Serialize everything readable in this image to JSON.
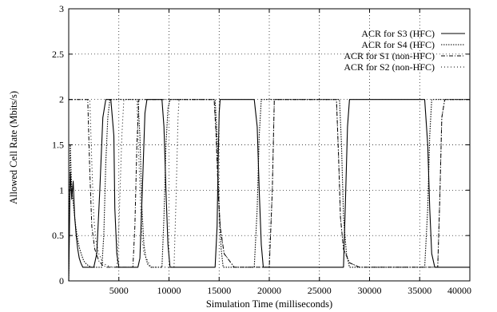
{
  "chart_data": {
    "type": "line",
    "title": "",
    "xlabel": "Simulation Time (milliseconds)",
    "ylabel": "Allowed Cell Rate (Mbits/s)",
    "xlim": [
      0,
      40000
    ],
    "ylim": [
      0,
      3
    ],
    "x_ticks": [
      5000,
      10000,
      15000,
      20000,
      25000,
      30000,
      35000,
      40000
    ],
    "y_ticks": [
      0,
      0.5,
      1,
      1.5,
      2,
      2.5,
      3
    ],
    "x_tick_labels": [
      "5000",
      "10000",
      "15000",
      "20000",
      "25000",
      "30000",
      "35000",
      "40000"
    ],
    "y_tick_labels": [
      "0",
      "0.5",
      "1",
      "1.5",
      "2",
      "2.5",
      "3"
    ],
    "grid": true,
    "legend_position": "top-right",
    "series": [
      {
        "name": "ACR for S3 (HFC)",
        "style": "solid",
        "x": [
          0,
          150,
          300,
          450,
          600,
          750,
          900,
          1050,
          1200,
          1400,
          1700,
          2000,
          2500,
          2800,
          3100,
          3400,
          3700,
          3800,
          4200,
          4500,
          4600,
          4800,
          5000,
          6000,
          6900,
          7100,
          7400,
          7600,
          7800,
          8000,
          8200,
          8600,
          9300,
          9500,
          9700,
          9900,
          10100,
          11000,
          12000,
          13000,
          14000,
          14600,
          14800,
          14900,
          15000,
          15100,
          15200,
          18500,
          18800,
          19000,
          19200,
          19400,
          19600,
          20000,
          23000,
          26000,
          27000,
          27400,
          27600,
          27800,
          28000,
          28200,
          30000,
          33000,
          35500,
          35800,
          36000,
          36200,
          36500,
          37000,
          38000,
          40000
        ],
        "values": [
          0.0,
          1.2,
          0.9,
          1.1,
          0.7,
          0.5,
          0.35,
          0.25,
          0.2,
          0.15,
          0.15,
          0.15,
          0.15,
          0.3,
          1.0,
          1.8,
          2.0,
          2.0,
          2.0,
          1.6,
          0.8,
          0.3,
          0.15,
          0.15,
          0.15,
          0.25,
          1.2,
          1.85,
          2.0,
          2.0,
          2.0,
          2.0,
          2.0,
          1.7,
          1.0,
          0.4,
          0.15,
          0.15,
          0.15,
          0.15,
          0.15,
          0.15,
          0.6,
          1.3,
          1.85,
          2.0,
          2.0,
          2.0,
          1.7,
          1.0,
          0.4,
          0.15,
          0.15,
          0.15,
          0.15,
          0.15,
          0.15,
          0.15,
          0.9,
          1.7,
          2.0,
          2.0,
          2.0,
          2.0,
          2.0,
          1.5,
          0.8,
          0.3,
          0.15,
          0.15,
          0.15,
          0.15
        ]
      },
      {
        "name": "ACR for S4 (HFC)",
        "style": "dotted",
        "x": [
          0,
          150,
          300,
          500,
          700,
          900,
          1100,
          1300,
          1500,
          1800,
          2100,
          2300,
          2500,
          2800,
          3300,
          3500,
          3700,
          3900,
          4100,
          4300,
          4500,
          4700,
          6000,
          6900,
          7100,
          7300,
          7500,
          7700,
          7900,
          8200,
          9300,
          9500,
          9700,
          9900,
          10100,
          10400,
          14600,
          14800,
          15000,
          15200,
          15400,
          18500,
          18800,
          19000,
          19200,
          19400,
          19800,
          27000,
          27200,
          27400,
          27700,
          28000,
          35500,
          35800,
          36000,
          36200,
          36600,
          37200,
          40000
        ],
        "values": [
          0.0,
          1.5,
          1.0,
          0.8,
          0.6,
          0.45,
          0.35,
          0.28,
          0.22,
          0.18,
          0.16,
          0.15,
          0.15,
          0.15,
          0.15,
          0.5,
          1.3,
          1.8,
          2.0,
          2.0,
          2.0,
          2.0,
          2.0,
          2.0,
          1.6,
          0.8,
          0.4,
          0.25,
          0.18,
          0.15,
          0.15,
          0.7,
          1.5,
          1.9,
          2.0,
          2.0,
          2.0,
          1.6,
          0.8,
          0.35,
          0.15,
          0.15,
          0.8,
          1.6,
          2.0,
          2.0,
          2.0,
          2.0,
          1.5,
          0.7,
          0.3,
          0.15,
          0.15,
          0.8,
          1.6,
          2.0,
          2.0,
          2.0,
          2.0
        ]
      },
      {
        "name": "ACR for S1 (non-HFC)",
        "style": "dashdot",
        "x": [
          0,
          600,
          1200,
          1700,
          1900,
          2100,
          2300,
          2600,
          3000,
          3400,
          3800,
          4200,
          4600,
          5000,
          5400,
          6000,
          6400,
          6600,
          6800,
          7000,
          7300,
          8200,
          10300,
          10500,
          10700,
          14500,
          14700,
          14900,
          15100,
          15500,
          16500,
          19300,
          19500,
          20000,
          20300,
          20500,
          26700,
          26900,
          27100,
          27400,
          28000,
          29000,
          36500,
          36800,
          37000,
          37200,
          37500,
          38000,
          40000
        ],
        "values": [
          2.0,
          2.0,
          2.0,
          2.0,
          2.0,
          1.2,
          0.6,
          0.35,
          0.22,
          0.17,
          0.15,
          0.15,
          0.15,
          0.15,
          0.15,
          0.15,
          0.15,
          0.6,
          1.5,
          2.0,
          2.0,
          2.0,
          2.0,
          2.0,
          2.0,
          2.0,
          1.6,
          1.0,
          0.6,
          0.3,
          0.15,
          0.15,
          0.15,
          0.15,
          1.0,
          2.0,
          2.0,
          1.4,
          0.7,
          0.35,
          0.2,
          0.15,
          0.15,
          0.15,
          0.9,
          1.8,
          2.0,
          2.0,
          2.0
        ]
      },
      {
        "name": "ACR for S2 (non-HFC)",
        "style": "sparse-dot",
        "x": [
          0,
          800,
          1500,
          2100,
          2300,
          2500,
          2700,
          3000,
          3400,
          3800,
          4300,
          4800,
          5000,
          5300,
          5500,
          6000,
          6500,
          6800,
          7100,
          7300,
          7500,
          8200,
          10500,
          10700,
          10900,
          11000,
          14500,
          14700,
          14900,
          15100,
          15500,
          16500,
          19300,
          19500,
          20000,
          20300,
          20500,
          26700,
          26900,
          27100,
          27400,
          28000,
          29000,
          36500,
          36800,
          37000,
          37200,
          37500,
          38000,
          40000
        ],
        "values": [
          2.0,
          2.0,
          2.0,
          2.0,
          1.3,
          0.7,
          0.45,
          0.3,
          0.2,
          0.17,
          0.15,
          0.15,
          0.6,
          1.6,
          2.0,
          2.0,
          2.0,
          2.0,
          1.0,
          0.5,
          0.3,
          0.15,
          0.15,
          0.9,
          1.8,
          2.0,
          2.0,
          1.6,
          1.0,
          0.6,
          0.3,
          0.15,
          0.15,
          0.15,
          0.15,
          1.0,
          2.0,
          2.0,
          1.4,
          0.7,
          0.35,
          0.2,
          0.15,
          0.15,
          0.15,
          0.9,
          1.8,
          2.0,
          2.0,
          2.0
        ]
      }
    ]
  }
}
